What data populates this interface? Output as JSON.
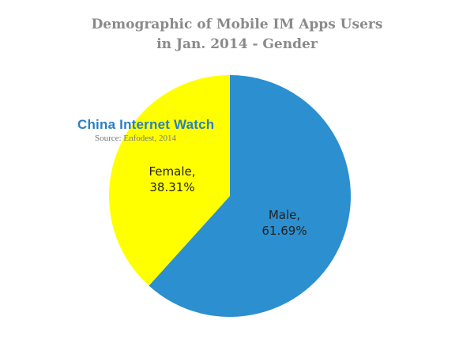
{
  "chart_data": {
    "type": "pie",
    "title": [
      "Demographic of Mobile IM Apps Users",
      "in Jan. 2014 - Gender"
    ],
    "categories": [
      "Male",
      "Female"
    ],
    "values": [
      61.69,
      38.31
    ],
    "data_labels": [
      [
        "Male,",
        "61.69%"
      ],
      [
        "Female,",
        "38.31%"
      ]
    ],
    "colors": [
      "#2b8fd0",
      "#ffff00"
    ],
    "start_angle": "12 o'clock",
    "direction": "clockwise",
    "legend": "none"
  },
  "watermark": {
    "brand": "China Internet Watch",
    "source": "Source: Enfodest, 2014"
  }
}
